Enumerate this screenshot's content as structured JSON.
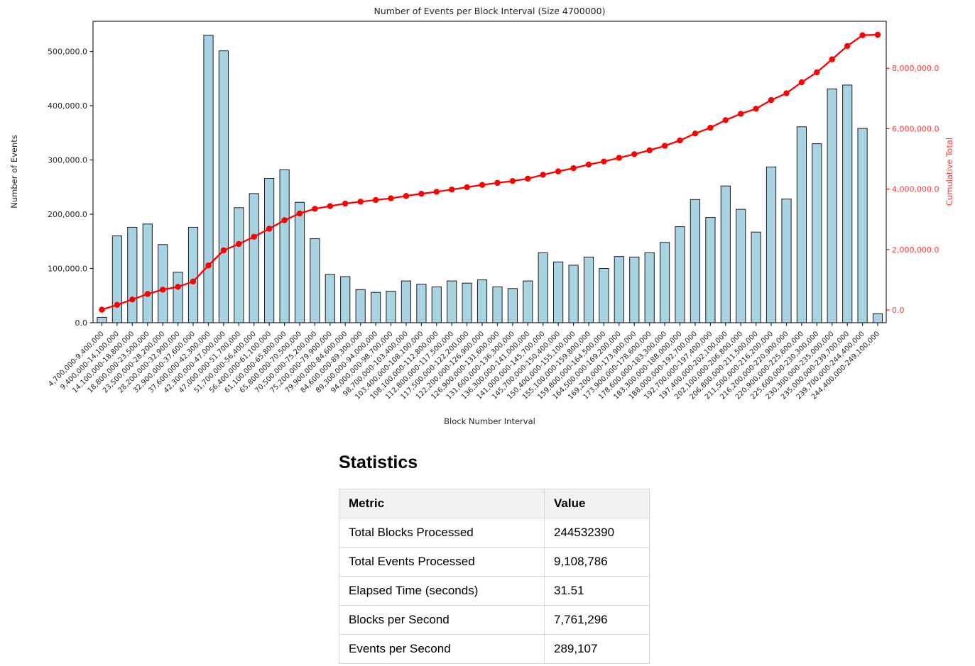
{
  "chart": {
    "title": "Number of Events per Block Interval (Size 4700000)",
    "x_axis": {
      "label": "Block Number Interval"
    },
    "y_left": {
      "label": "Number of Events",
      "ticks": [
        {
          "value": 0,
          "label": "0.0"
        },
        {
          "value": 100000,
          "label": "100,000.0"
        },
        {
          "value": 200000,
          "label": "200,000.0"
        },
        {
          "value": 300000,
          "label": "300,000.0"
        },
        {
          "value": 400000,
          "label": "400,000.0"
        },
        {
          "value": 500000,
          "label": "500,000.0"
        }
      ]
    },
    "y_right": {
      "label": "Cumulative Total",
      "ticks": [
        {
          "value": 0,
          "label": "0.0"
        },
        {
          "value": 2000000,
          "label": "2,000,000.0"
        },
        {
          "value": 4000000,
          "label": "4,000,000.0"
        },
        {
          "value": 6000000,
          "label": "6,000,000.0"
        },
        {
          "value": 8000000,
          "label": "8,000,000.0"
        }
      ]
    },
    "colors": {
      "bar_fill": "#a8d3e2",
      "bar_edge": "#1c1c1c",
      "line": "#ff0000",
      "right_axis_text": "#ff3333",
      "axis_text": "#262626"
    }
  },
  "chart_data": {
    "type": "bar",
    "title": "Number of Events per Block Interval (Size 4700000)",
    "xlabel": "Block Number Interval",
    "ylabel_left": "Number of Events",
    "ylabel_right": "Cumulative Total",
    "ylim_left": [
      0,
      555000
    ],
    "ylim_right": [
      0,
      9550000
    ],
    "legend": "none",
    "grid": false,
    "categories": [
      "4,700,000-9,400,000",
      "9,400,000-14,100,000",
      "14,100,000-18,800,000",
      "18,800,000-23,500,000",
      "23,500,000-28,200,000",
      "28,200,000-32,900,000",
      "32,900,000-37,600,000",
      "37,600,000-42,300,000",
      "42,300,000-47,000,000",
      "47,000,000-51,700,000",
      "51,700,000-56,400,000",
      "56,400,000-61,100,000",
      "61,100,000-65,800,000",
      "65,800,000-70,500,000",
      "70,500,000-75,200,000",
      "75,200,000-79,900,000",
      "79,900,000-84,600,000",
      "84,600,000-89,300,000",
      "89,300,000-94,000,000",
      "94,000,000-98,700,000",
      "98,700,000-103,400,000",
      "103,400,000-108,100,000",
      "108,100,000-112,800,000",
      "112,800,000-117,500,000",
      "117,500,000-122,200,000",
      "122,200,000-126,900,000",
      "126,900,000-131,600,000",
      "131,600,000-136,300,000",
      "136,300,000-141,000,000",
      "141,000,000-145,700,000",
      "145,700,000-150,400,000",
      "150,400,000-155,100,000",
      "155,100,000-159,800,000",
      "159,800,000-164,500,000",
      "164,500,000-169,200,000",
      "169,200,000-173,900,000",
      "173,900,000-178,600,000",
      "178,600,000-183,300,000",
      "183,300,000-188,000,000",
      "188,000,000-192,700,000",
      "192,700,000-197,400,000",
      "197,400,000-202,100,000",
      "202,100,000-206,800,000",
      "206,800,000-211,500,000",
      "211,500,000-216,200,000",
      "216,200,000-220,900,000",
      "220,900,000-225,600,000",
      "225,600,000-230,300,000",
      "230,300,000-235,000,000",
      "235,000,000-239,700,000",
      "239,700,000-244,400,000",
      "244,400,000-249,100,000"
    ],
    "series": [
      {
        "name": "Number of Events",
        "type": "bar",
        "axis": "left",
        "values": [
          10000,
          160000,
          176000,
          182000,
          144000,
          93000,
          176000,
          530000,
          501000,
          212000,
          238000,
          266000,
          282000,
          222000,
          155000,
          89000,
          85000,
          61000,
          56000,
          58000,
          77000,
          71000,
          66000,
          77000,
          73000,
          79000,
          66000,
          63000,
          77000,
          129000,
          112000,
          106000,
          121000,
          100000,
          122000,
          121000,
          129000,
          148000,
          177000,
          227000,
          194000,
          252000,
          209000,
          167000,
          287000,
          228000,
          361000,
          330000,
          431000,
          438000,
          358000,
          16786
        ]
      },
      {
        "name": "Cumulative Total",
        "type": "line",
        "axis": "right",
        "marker": "circle",
        "values": [
          10000,
          170000,
          346000,
          528000,
          672000,
          765000,
          941000,
          1471000,
          1972000,
          2184000,
          2422000,
          2688000,
          2970000,
          3192000,
          3347000,
          3436000,
          3521000,
          3582000,
          3638000,
          3696000,
          3773000,
          3844000,
          3910000,
          3987000,
          4060000,
          4139000,
          4205000,
          4268000,
          4345000,
          4474000,
          4586000,
          4692000,
          4813000,
          4913000,
          5035000,
          5156000,
          5285000,
          5433000,
          5610000,
          5837000,
          6031000,
          6283000,
          6492000,
          6659000,
          6946000,
          7174000,
          7535000,
          7865000,
          8296000,
          8734000,
          9092000,
          9108786
        ]
      }
    ]
  },
  "statistics": {
    "heading": "Statistics",
    "table": {
      "columns": [
        "Metric",
        "Value"
      ],
      "rows": [
        [
          "Total Blocks Processed",
          "244532390"
        ],
        [
          "Total Events Processed",
          "9,108,786"
        ],
        [
          "Elapsed Time (seconds)",
          "31.51"
        ],
        [
          "Blocks per Second",
          "7,761,296"
        ],
        [
          "Events per Second",
          "289,107"
        ]
      ]
    }
  }
}
